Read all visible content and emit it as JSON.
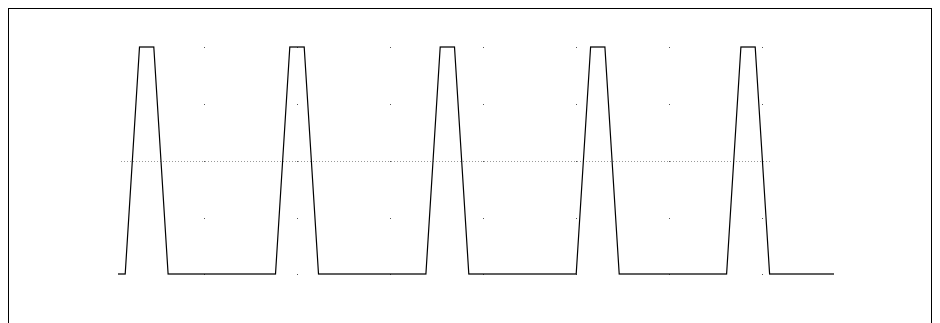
{
  "chart_data": {
    "type": "line",
    "title": "",
    "xlabel": "",
    "ylabel": "",
    "grid": "dotted",
    "legend": "none",
    "xlim": [
      0,
      100
    ],
    "ylim": [
      0,
      1
    ],
    "series": [
      {
        "x": [
          0,
          1,
          3,
          5,
          7,
          8,
          21,
          22,
          24,
          26,
          28,
          29,
          42,
          43,
          45,
          47,
          49,
          50,
          63,
          64,
          66,
          68,
          70,
          71,
          84,
          85,
          87,
          89,
          91,
          92,
          100
        ],
        "y": [
          0,
          0,
          1,
          1,
          0,
          0,
          0,
          0,
          1,
          1,
          0,
          0,
          0,
          0,
          1,
          1,
          0,
          0,
          0,
          0,
          1,
          1,
          0,
          0,
          0,
          0,
          1,
          1,
          0,
          0,
          0
        ]
      }
    ],
    "colors": {
      "line": "#000000",
      "frame": "#000000",
      "grid": "#9a9a9a",
      "background": "#ffffff"
    }
  }
}
